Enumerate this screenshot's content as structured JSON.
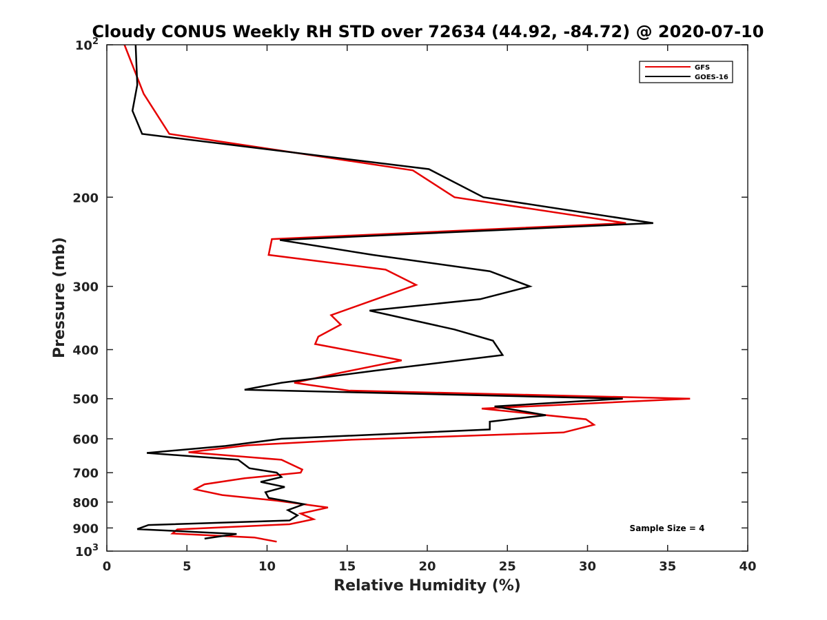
{
  "chart_data": {
    "type": "line",
    "title": "Cloudy CONUS Weekly RH STD over 72634 (44.92, -84.72) @ 2020-07-10",
    "xlabel": "Relative Humidity (%)",
    "ylabel": "Pressure (mb)",
    "xlim": [
      0,
      40
    ],
    "ylim": [
      100,
      1000
    ],
    "y_scale": "log",
    "y_reversed": true,
    "x_ticks": [
      0,
      5,
      10,
      15,
      20,
      25,
      30,
      35,
      40
    ],
    "y_ticks": [
      {
        "value": 100,
        "label": "10",
        "exp": "2"
      },
      {
        "value": 200,
        "label": "200"
      },
      {
        "value": 300,
        "label": "300"
      },
      {
        "value": 400,
        "label": "400"
      },
      {
        "value": 500,
        "label": "500"
      },
      {
        "value": 600,
        "label": "600"
      },
      {
        "value": 700,
        "label": "700"
      },
      {
        "value": 800,
        "label": "800"
      },
      {
        "value": 900,
        "label": "900"
      },
      {
        "value": 1000,
        "label": "10",
        "exp": "3"
      }
    ],
    "grid": false,
    "legend_position": "top-right",
    "annotation": "Sample Size = 4",
    "series": [
      {
        "name": "GFS",
        "color": "#e60000",
        "points": [
          [
            1.1,
            100
          ],
          [
            2.3,
            125
          ],
          [
            3.9,
            150
          ],
          [
            19.1,
            177
          ],
          [
            21.7,
            200
          ],
          [
            32.4,
            225
          ],
          [
            10.3,
            242
          ],
          [
            10.1,
            260
          ],
          [
            17.4,
            278
          ],
          [
            19.3,
            298
          ],
          [
            16.8,
            318
          ],
          [
            14.0,
            342
          ],
          [
            14.6,
            357
          ],
          [
            13.2,
            377
          ],
          [
            13.0,
            390
          ],
          [
            18.4,
            420
          ],
          [
            14.5,
            445
          ],
          [
            11.7,
            465
          ],
          [
            15.1,
            482
          ],
          [
            36.4,
            500
          ],
          [
            23.4,
            523
          ],
          [
            29.9,
            549
          ],
          [
            30.4,
            563
          ],
          [
            28.5,
            583
          ],
          [
            15.1,
            603
          ],
          [
            8.8,
            618
          ],
          [
            5.1,
            638
          ],
          [
            10.9,
            660
          ],
          [
            12.2,
            690
          ],
          [
            12.1,
            700
          ],
          [
            8.6,
            718
          ],
          [
            6.1,
            738
          ],
          [
            5.5,
            755
          ],
          [
            7.2,
            775
          ],
          [
            10.6,
            795
          ],
          [
            13.8,
            820
          ],
          [
            12.1,
            843
          ],
          [
            12.9,
            865
          ],
          [
            11.4,
            885
          ],
          [
            4.4,
            906
          ],
          [
            4.1,
            923
          ],
          [
            9.2,
            940
          ],
          [
            10.6,
            958
          ]
        ]
      },
      {
        "name": "GOES-16",
        "color": "#000000",
        "points": [
          [
            1.8,
            100
          ],
          [
            1.9,
            120
          ],
          [
            1.6,
            135
          ],
          [
            2.2,
            150
          ],
          [
            20.1,
            176
          ],
          [
            23.5,
            200
          ],
          [
            34.1,
            225
          ],
          [
            10.8,
            243
          ],
          [
            16.6,
            260
          ],
          [
            23.9,
            280
          ],
          [
            26.4,
            300
          ],
          [
            23.3,
            318
          ],
          [
            16.4,
            335
          ],
          [
            21.7,
            365
          ],
          [
            24.1,
            384
          ],
          [
            24.7,
            410
          ],
          [
            16.8,
            440
          ],
          [
            10.9,
            465
          ],
          [
            8.6,
            480
          ],
          [
            32.2,
            500
          ],
          [
            24.2,
            518
          ],
          [
            27.4,
            539
          ],
          [
            23.9,
            555
          ],
          [
            23.9,
            575
          ],
          [
            10.9,
            600
          ],
          [
            7.4,
            620
          ],
          [
            2.5,
            640
          ],
          [
            8.2,
            660
          ],
          [
            8.9,
            686
          ],
          [
            10.6,
            700
          ],
          [
            10.9,
            714
          ],
          [
            9.6,
            730
          ],
          [
            11.1,
            747
          ],
          [
            9.9,
            765
          ],
          [
            10.1,
            785
          ],
          [
            12.3,
            808
          ],
          [
            11.3,
            830
          ],
          [
            11.9,
            850
          ],
          [
            11.4,
            870
          ],
          [
            2.6,
            888
          ],
          [
            1.9,
            905
          ],
          [
            8.1,
            925
          ],
          [
            6.1,
            945
          ]
        ]
      }
    ]
  }
}
